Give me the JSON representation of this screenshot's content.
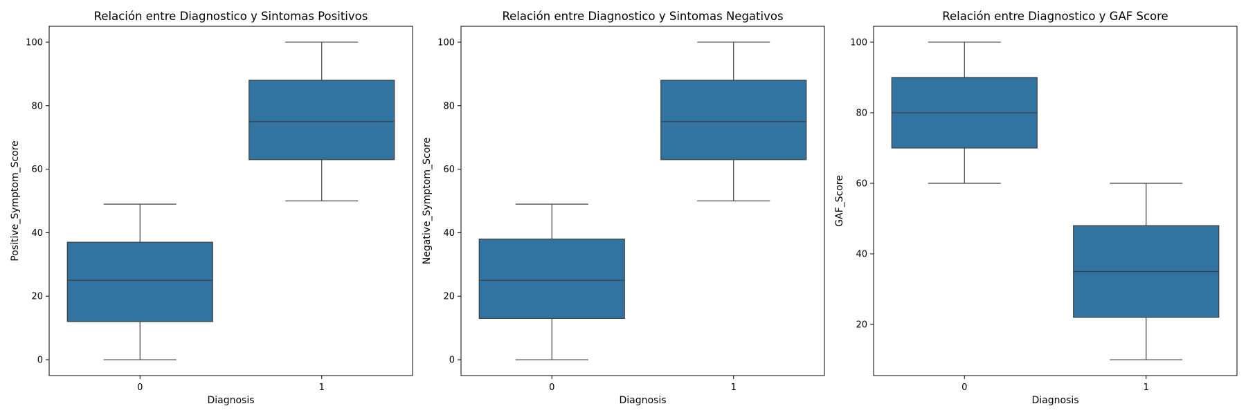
{
  "chart_data": [
    {
      "type": "box",
      "title": "Relación entre Diagnostico y Sintomas Positivos",
      "xlabel": "Diagnosis",
      "ylabel": "Positive_Symptom_Score",
      "categories": [
        "0",
        "1"
      ],
      "boxes": [
        {
          "category": "0",
          "min": 0,
          "q1": 12,
          "median": 25,
          "q3": 37,
          "max": 49
        },
        {
          "category": "1",
          "min": 50,
          "q1": 63,
          "median": 75,
          "q3": 88,
          "max": 100
        }
      ],
      "ylim": [
        -5,
        105
      ],
      "yticks": [
        0,
        20,
        40,
        60,
        80,
        100
      ],
      "grid": false,
      "color": "#3274a1"
    },
    {
      "type": "box",
      "title": "Relación entre Diagnostico y Sintomas Negativos",
      "xlabel": "Diagnosis",
      "ylabel": "Negative_Symptom_Score",
      "categories": [
        "0",
        "1"
      ],
      "boxes": [
        {
          "category": "0",
          "min": 0,
          "q1": 13,
          "median": 25,
          "q3": 38,
          "max": 49
        },
        {
          "category": "1",
          "min": 50,
          "q1": 63,
          "median": 75,
          "q3": 88,
          "max": 100
        }
      ],
      "ylim": [
        -5,
        105
      ],
      "yticks": [
        0,
        20,
        40,
        60,
        80,
        100
      ],
      "grid": false,
      "color": "#3274a1"
    },
    {
      "type": "box",
      "title": "Relación entre Diagnostico y GAF Score",
      "xlabel": "Diagnosis",
      "ylabel": "GAF_Score",
      "categories": [
        "0",
        "1"
      ],
      "boxes": [
        {
          "category": "0",
          "min": 60,
          "q1": 70,
          "median": 80,
          "q3": 90,
          "max": 100
        },
        {
          "category": "1",
          "min": 10,
          "q1": 22,
          "median": 35,
          "q3": 48,
          "max": 60
        }
      ],
      "ylim": [
        5.5,
        104.5
      ],
      "yticks": [
        20,
        40,
        60,
        80,
        100
      ],
      "grid": false,
      "color": "#3274a1"
    }
  ]
}
